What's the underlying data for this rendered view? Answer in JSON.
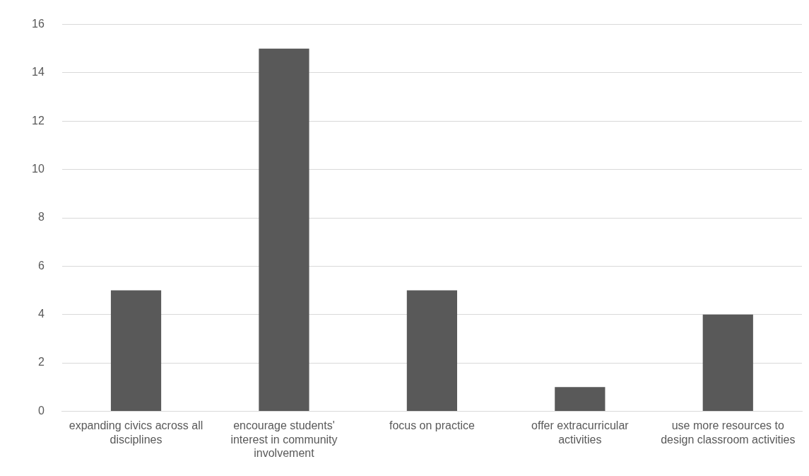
{
  "chart_data": {
    "type": "bar",
    "categories": [
      "expanding civics across all disciplines",
      "encourage students' interest in community involvement",
      "focus on practice",
      "offer extracurricular activities",
      "use more resources to design classroom activities"
    ],
    "values": [
      5,
      15,
      5,
      1,
      4
    ],
    "color": "#595959",
    "ylim": [
      0,
      16
    ],
    "yticks": [
      0,
      2,
      4,
      6,
      8,
      10,
      12,
      14,
      16
    ],
    "grid": "y",
    "legend": false
  }
}
